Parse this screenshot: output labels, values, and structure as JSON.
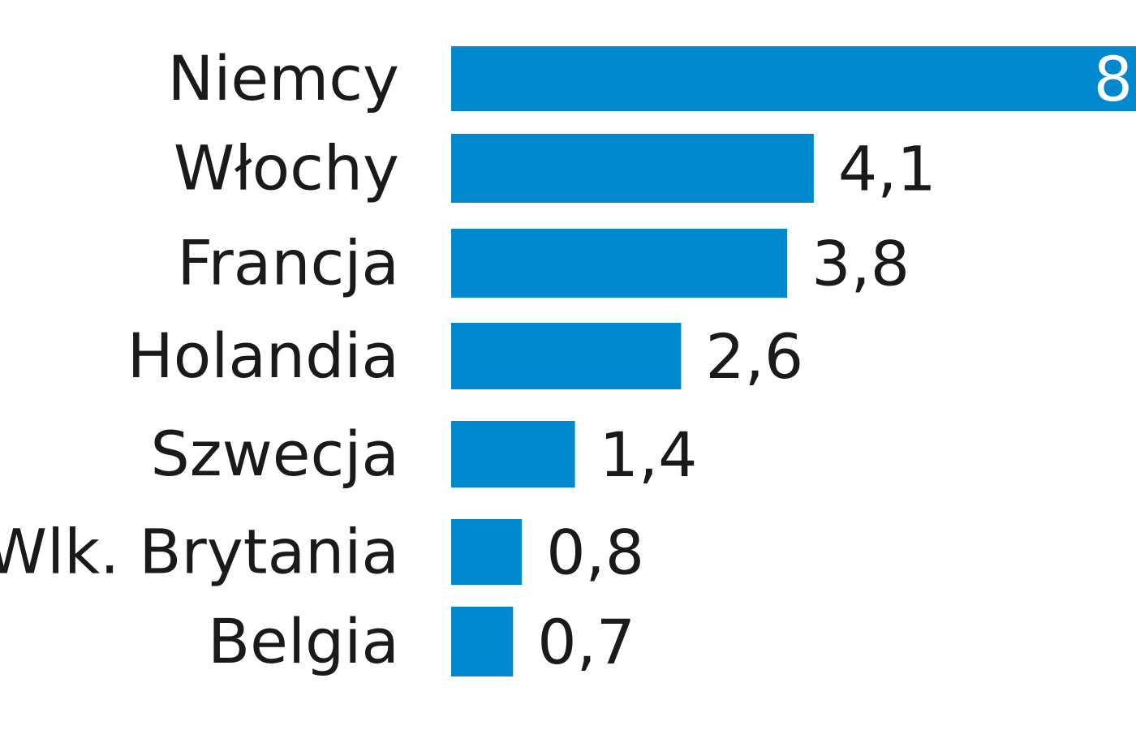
{
  "chart_data": {
    "type": "bar",
    "orientation": "horizontal",
    "categories": [
      "Niemcy",
      "Włochy",
      "Francja",
      "Holandia",
      "Szwecja",
      "Wlk. Brytania",
      "Belgia"
    ],
    "values": [
      8,
      4.1,
      3.8,
      2.6,
      1.4,
      0.8,
      0.7
    ],
    "value_labels": [
      "8",
      "4,1",
      "3,8",
      "2,6",
      "1,4",
      "0,8",
      "0,7"
    ],
    "colors": {
      "bar": "#0089cf",
      "text": "#1a1a1a",
      "inside_text": "#ffffff"
    },
    "grid": false,
    "legend": "none"
  }
}
